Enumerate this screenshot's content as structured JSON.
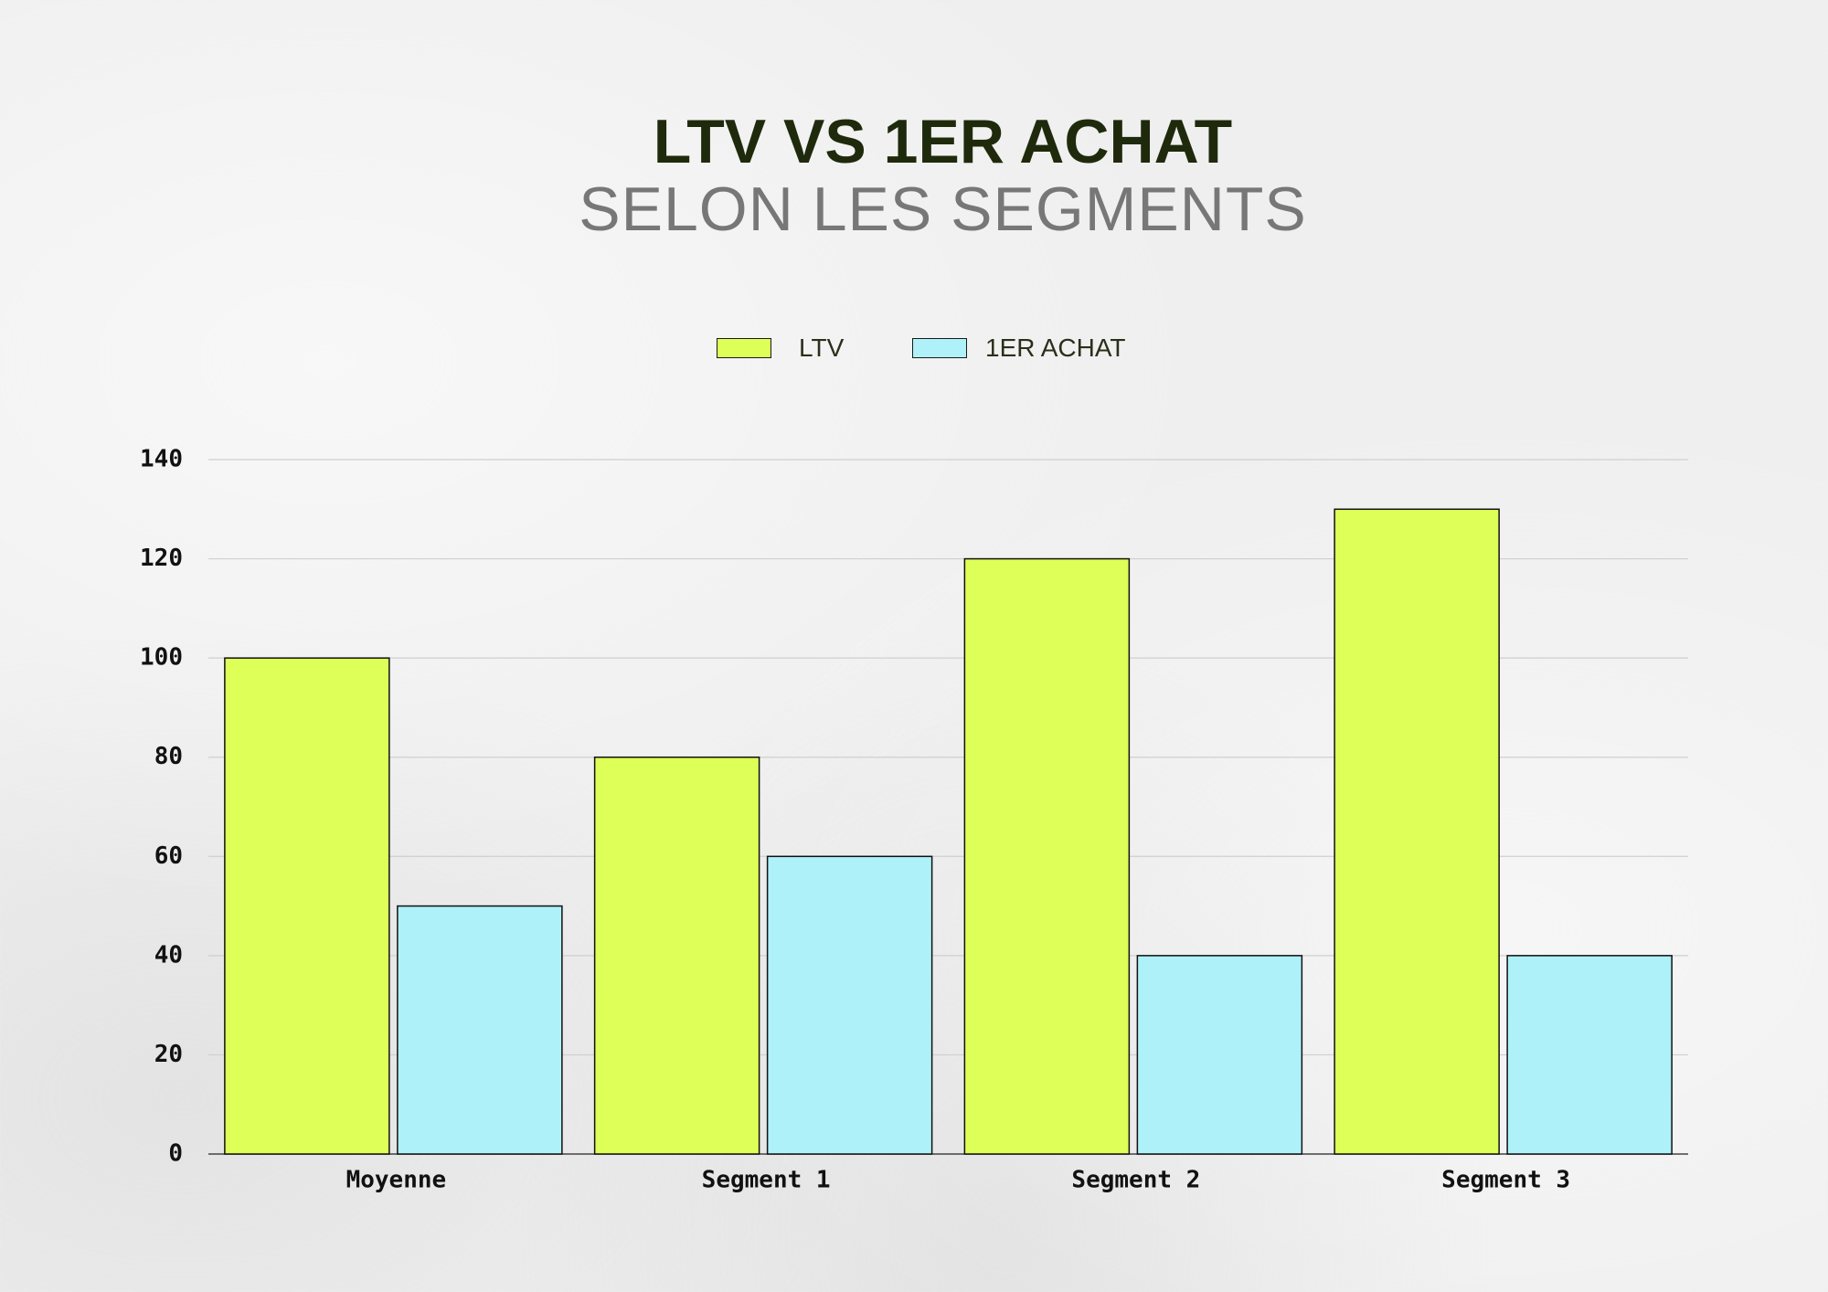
{
  "chart_data": {
    "type": "bar",
    "title": "LTV VS 1ER ACHAT",
    "subtitle": "SELON LES SEGMENTS",
    "categories": [
      "Moyenne",
      "Segment 1",
      "Segment 2",
      "Segment 3"
    ],
    "series": [
      {
        "name": "LTV",
        "values": [
          100,
          80,
          120,
          130
        ],
        "color": "#deff57"
      },
      {
        "name": "1ER ACHAT",
        "values": [
          50,
          60,
          40,
          40
        ],
        "color": "#aef1f8"
      }
    ],
    "ylim": [
      0,
      140
    ],
    "yticks": [
      0,
      20,
      40,
      60,
      80,
      100,
      120,
      140
    ],
    "grid": true,
    "legend_position": "top-center"
  }
}
